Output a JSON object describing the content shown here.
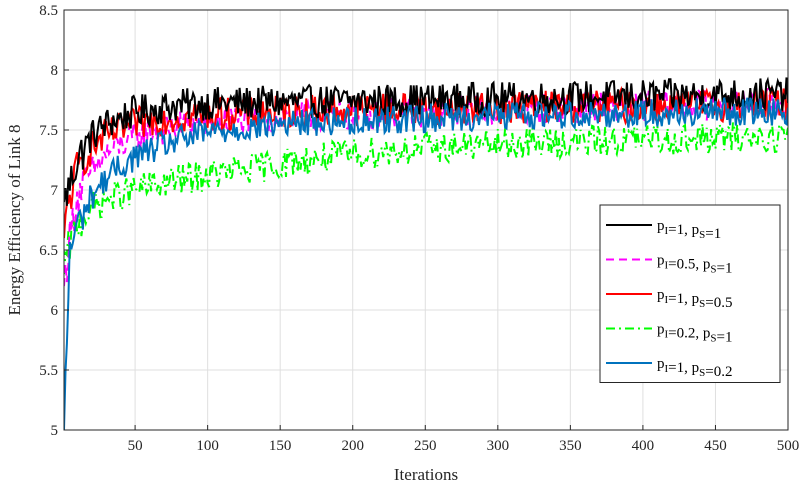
{
  "chart_data": {
    "type": "line",
    "title": "",
    "xlabel": "Iterations",
    "ylabel": "Energy Efficiency of Link 8",
    "xlim": [
      1,
      500
    ],
    "ylim": [
      5,
      8.5
    ],
    "xticks": [
      50,
      100,
      150,
      200,
      250,
      300,
      350,
      400,
      450,
      500
    ],
    "yticks": [
      5,
      5.5,
      6,
      6.5,
      7,
      7.5,
      8,
      8.5
    ],
    "xtick_labels": [
      "50",
      "100",
      "150",
      "200",
      "250",
      "300",
      "350",
      "400",
      "450",
      "500"
    ],
    "ytick_labels": [
      "5",
      "5.5",
      "6",
      "6.5",
      "7",
      "7.5",
      "8",
      "8.5"
    ],
    "grid": true,
    "legend_position": "right",
    "series": [
      {
        "name": "pI=1, pS=1",
        "legend": {
          "a": "p",
          "a_sub": "I",
          "b": "=1,    p",
          "b_sub": "S",
          "c": "=1"
        },
        "color": "#000000",
        "dash": "solid",
        "start": 6.9,
        "x": [
          1,
          5,
          10,
          20,
          30,
          50,
          75,
          100,
          150,
          200,
          250,
          300,
          350,
          400,
          450,
          500
        ],
        "y": [
          6.9,
          7.05,
          7.25,
          7.45,
          7.55,
          7.65,
          7.7,
          7.72,
          7.73,
          7.74,
          7.75,
          7.76,
          7.77,
          7.78,
          7.79,
          7.8
        ],
        "noise": 0.14
      },
      {
        "name": "pI=0.5, pS=1",
        "legend": {
          "a": "p",
          "a_sub": "I",
          "b": "=0.5, p",
          "b_sub": "S",
          "c": "=1"
        },
        "color": "#ff00ff",
        "dash": "dashed",
        "start": 6.2,
        "x": [
          1,
          5,
          10,
          20,
          30,
          50,
          75,
          100,
          150,
          200,
          250,
          300,
          350,
          400,
          450,
          500
        ],
        "y": [
          6.2,
          6.6,
          6.95,
          7.15,
          7.3,
          7.45,
          7.52,
          7.57,
          7.6,
          7.63,
          7.65,
          7.67,
          7.68,
          7.7,
          7.71,
          7.72
        ],
        "noise": 0.13
      },
      {
        "name": "pI=1, pS=0.5",
        "legend": {
          "a": "p",
          "a_sub": "I",
          "b": "=1,    p",
          "b_sub": "S",
          "c": "=0.5"
        },
        "color": "#ff0000",
        "dash": "solid",
        "start": 6.6,
        "x": [
          1,
          5,
          10,
          20,
          30,
          50,
          75,
          100,
          150,
          200,
          250,
          300,
          350,
          400,
          450,
          500
        ],
        "y": [
          6.6,
          6.95,
          7.15,
          7.35,
          7.45,
          7.55,
          7.6,
          7.63,
          7.65,
          7.67,
          7.68,
          7.69,
          7.7,
          7.7,
          7.71,
          7.72
        ],
        "noise": 0.14
      },
      {
        "name": "pI=0.2, pS=1",
        "legend": {
          "a": "p",
          "a_sub": "I",
          "b": "=0.2, p",
          "b_sub": "S",
          "c": "=1"
        },
        "color": "#00ff00",
        "dash": "dashdot",
        "start": 6.3,
        "x": [
          1,
          5,
          10,
          20,
          30,
          50,
          75,
          100,
          150,
          200,
          250,
          300,
          350,
          400,
          450,
          500
        ],
        "y": [
          6.3,
          6.55,
          6.72,
          6.85,
          6.92,
          7.0,
          7.07,
          7.12,
          7.22,
          7.3,
          7.35,
          7.38,
          7.4,
          7.42,
          7.43,
          7.45
        ],
        "noise": 0.13
      },
      {
        "name": "pI=1, pS=0.2",
        "legend": {
          "a": "p",
          "a_sub": "I",
          "b": "=1,    p",
          "b_sub": "S",
          "c": "=0.2"
        },
        "color": "#0072bd",
        "dash": "solid",
        "start": 5.0,
        "x": [
          1,
          5,
          10,
          20,
          30,
          50,
          75,
          100,
          150,
          200,
          250,
          300,
          350,
          400,
          450,
          500
        ],
        "y": [
          5.0,
          6.5,
          6.7,
          6.95,
          7.1,
          7.28,
          7.4,
          7.48,
          7.55,
          7.58,
          7.6,
          7.62,
          7.63,
          7.64,
          7.65,
          7.66
        ],
        "noise": 0.12
      }
    ]
  }
}
